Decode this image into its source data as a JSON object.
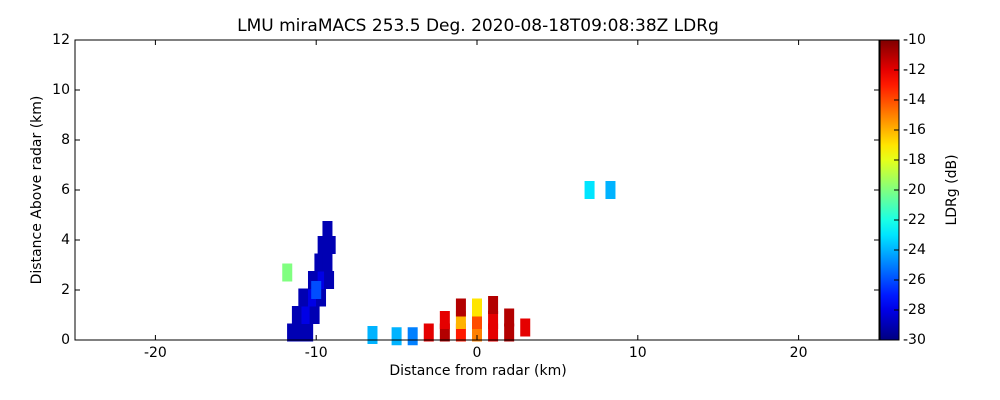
{
  "chart_data": {
    "type": "heatmap",
    "title": "LMU miraMACS 253.5 Deg. 2020-08-18T09:08:38Z  LDRg",
    "xlabel": "Distance from radar (km)",
    "ylabel": "Distance Above radar  (km)",
    "colorbar_label": "LDRg (dB)",
    "colormap": "jet",
    "x": [
      -11.5,
      -11,
      -10.5,
      -11.2,
      -10.6,
      -10.1,
      -10.8,
      -10.2,
      -9.7,
      -10.2,
      -9.6,
      -9.2,
      -9.8,
      -9.3,
      -9.6,
      -9.1,
      -9.3,
      -10,
      -11.8,
      -3,
      -2,
      -1,
      0,
      1,
      2,
      3,
      -2,
      -1,
      0,
      1,
      2,
      -1,
      0,
      1,
      -5,
      -4,
      -6.5,
      7,
      8.3
    ],
    "y": [
      0.3,
      0.3,
      0.3,
      1,
      1,
      1,
      1.7,
      1.7,
      1.7,
      2.4,
      2.4,
      2.4,
      3.1,
      3.1,
      3.8,
      3.8,
      4.4,
      2,
      2.7,
      0.3,
      0.3,
      0.3,
      0.3,
      0.3,
      0.3,
      0.5,
      0.8,
      0.8,
      0.8,
      0.8,
      0.9,
      1.3,
      1.3,
      1.4,
      0.15,
      0.15,
      0.2,
      6,
      6
    ],
    "values": [
      -29,
      -29,
      -29,
      -29,
      -28,
      -29,
      -29,
      -28,
      -29,
      -29,
      -28,
      -29,
      -29,
      -29,
      -29,
      -29,
      -29,
      -26,
      -20,
      -12,
      -11,
      -13,
      -15,
      -12,
      -11,
      -12,
      -12,
      -16,
      -14,
      -12,
      -11,
      -11,
      -17,
      -11,
      -24,
      -25,
      -24,
      -23,
      -24
    ],
    "xlim": [
      -25,
      25
    ],
    "xticks": [
      -20,
      -10,
      0,
      10,
      20
    ],
    "ylim": [
      0,
      12
    ],
    "yticks": [
      0,
      2,
      4,
      6,
      8,
      10,
      12
    ],
    "clim": [
      -30,
      -10
    ],
    "cticks": [
      -30,
      -28,
      -26,
      -24,
      -22,
      -20,
      -18,
      -16,
      -14,
      -12,
      -10
    ]
  }
}
